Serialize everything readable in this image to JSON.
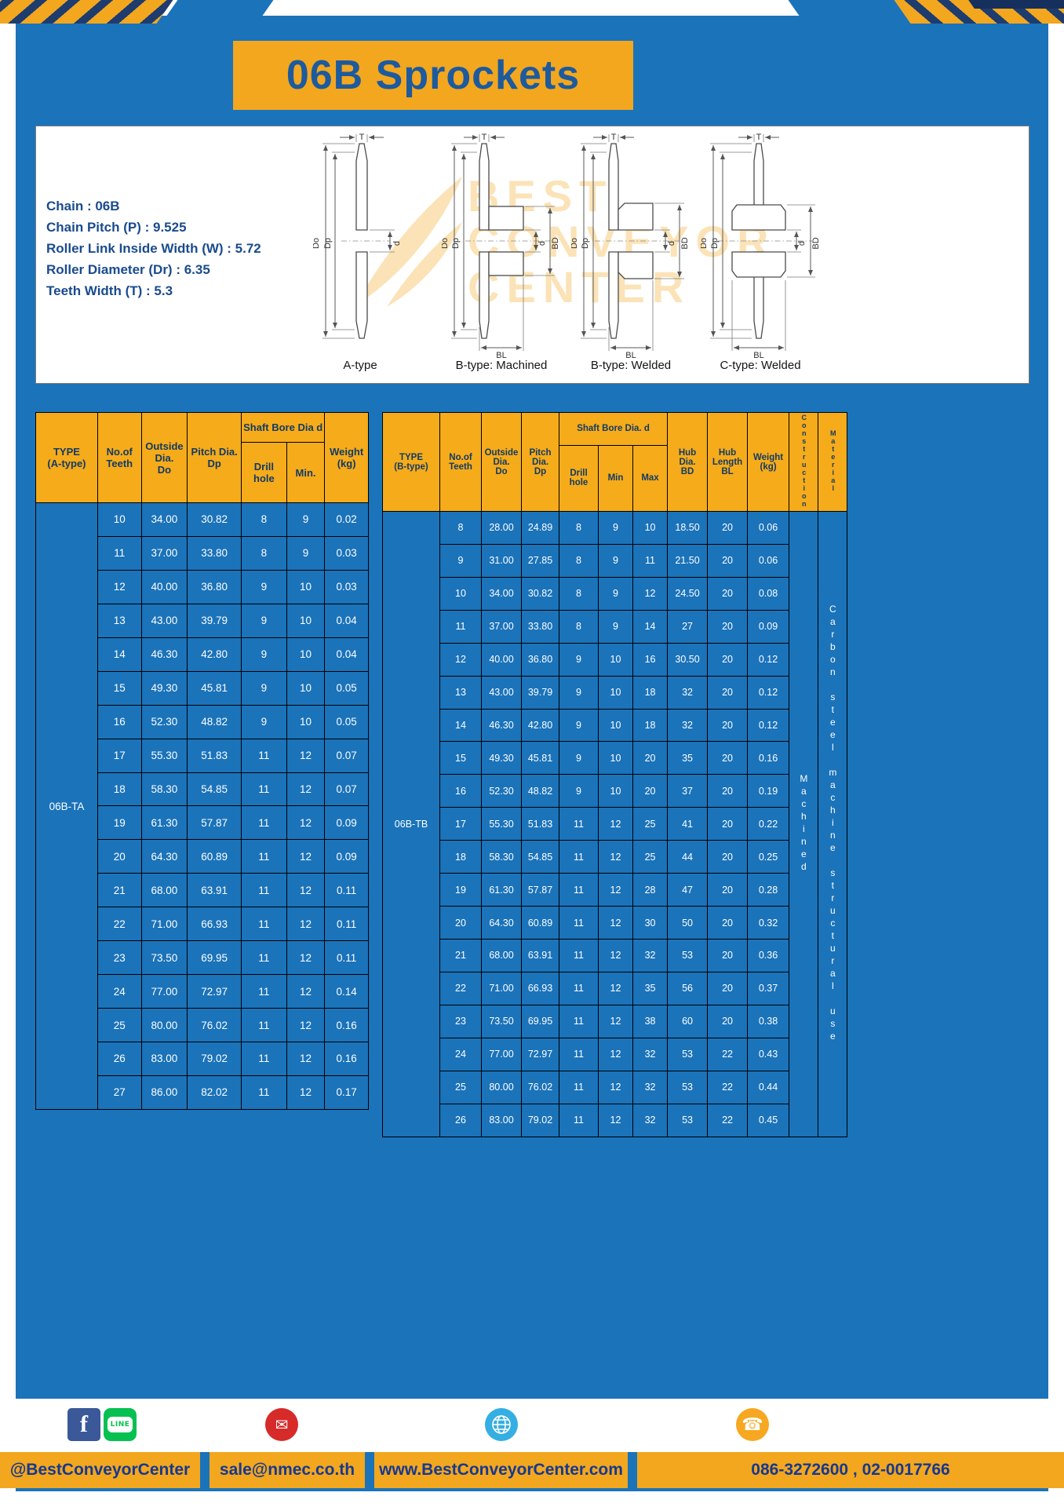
{
  "page": {
    "title": "06B Sprockets"
  },
  "colors": {
    "background_blue": "#1b73ba",
    "accent_yellow": "#f2a71f",
    "stripe_navy": "#1e3c6e",
    "header_text_navy": "#123a66"
  },
  "specs": {
    "lines": [
      "Chain : 06B",
      "Chain Pitch (P) : 9.525",
      "Roller Link Inside Width (W) : 5.72",
      "Roller Diameter (Dr) : 6.35",
      "Teeth Width (T) : 5.3"
    ]
  },
  "watermark": {
    "lines": [
      "BEST",
      "CONVEYOR",
      "CENTER"
    ]
  },
  "diagrams": {
    "captions": [
      "A-type",
      "B-type: Machined",
      "B-type: Welded",
      "C-type: Welded"
    ],
    "labels": {
      "do": "Do",
      "dp": "Dp",
      "d": "d",
      "t": "T",
      "bl": "BL",
      "bd": "BD"
    }
  },
  "table_a": {
    "header": {
      "type": "TYPE\n(A-type)",
      "teeth": "No.of\nTeeth",
      "outside": "Outside\nDia.\nDo",
      "pitch": "Pitch Dia.\nDp",
      "bore_group": "Shaft Bore Dia d",
      "drill": "Drill hole",
      "min": "Min.",
      "weight": "Weight\n(kg)"
    },
    "type_value": "06B-TA",
    "rows": [
      [
        "10",
        "34.00",
        "30.82",
        "8",
        "9",
        "0.02"
      ],
      [
        "11",
        "37.00",
        "33.80",
        "8",
        "9",
        "0.03"
      ],
      [
        "12",
        "40.00",
        "36.80",
        "9",
        "10",
        "0.03"
      ],
      [
        "13",
        "43.00",
        "39.79",
        "9",
        "10",
        "0.04"
      ],
      [
        "14",
        "46.30",
        "42.80",
        "9",
        "10",
        "0.04"
      ],
      [
        "15",
        "49.30",
        "45.81",
        "9",
        "10",
        "0.05"
      ],
      [
        "16",
        "52.30",
        "48.82",
        "9",
        "10",
        "0.05"
      ],
      [
        "17",
        "55.30",
        "51.83",
        "11",
        "12",
        "0.07"
      ],
      [
        "18",
        "58.30",
        "54.85",
        "11",
        "12",
        "0.07"
      ],
      [
        "19",
        "61.30",
        "57.87",
        "11",
        "12",
        "0.09"
      ],
      [
        "20",
        "64.30",
        "60.89",
        "11",
        "12",
        "0.09"
      ],
      [
        "21",
        "68.00",
        "63.91",
        "11",
        "12",
        "0.11"
      ],
      [
        "22",
        "71.00",
        "66.93",
        "11",
        "12",
        "0.11"
      ],
      [
        "23",
        "73.50",
        "69.95",
        "11",
        "12",
        "0.11"
      ],
      [
        "24",
        "77.00",
        "72.97",
        "11",
        "12",
        "0.14"
      ],
      [
        "25",
        "80.00",
        "76.02",
        "11",
        "12",
        "0.16"
      ],
      [
        "26",
        "83.00",
        "79.02",
        "11",
        "12",
        "0.16"
      ],
      [
        "27",
        "86.00",
        "82.02",
        "11",
        "12",
        "0.17"
      ]
    ]
  },
  "table_b": {
    "header": {
      "type": "TYPE\n(B-type)",
      "teeth": "No.of\nTeeth",
      "outside": "Outside\nDia.\nDo",
      "pitch": "Pitch\nDia.\nDp",
      "bore_group": "Shaft Bore Dia.  d",
      "drill": "Drill hole",
      "min": "Min",
      "max": "Max",
      "hub_dia": "Hub\nDia.\nBD",
      "hub_len": "Hub\nLength\nBL",
      "weight": "Weight\n(kg)",
      "construction": "Construction",
      "material": "Material"
    },
    "type_value": "06B-TB",
    "construction_value": "Machined",
    "material_value": "Carbon steel machine structural use",
    "rows": [
      [
        "8",
        "28.00",
        "24.89",
        "8",
        "9",
        "10",
        "18.50",
        "20",
        "0.06"
      ],
      [
        "9",
        "31.00",
        "27.85",
        "8",
        "9",
        "11",
        "21.50",
        "20",
        "0.06"
      ],
      [
        "10",
        "34.00",
        "30.82",
        "8",
        "9",
        "12",
        "24.50",
        "20",
        "0.08"
      ],
      [
        "11",
        "37.00",
        "33.80",
        "8",
        "9",
        "14",
        "27",
        "20",
        "0.09"
      ],
      [
        "12",
        "40.00",
        "36.80",
        "9",
        "10",
        "16",
        "30.50",
        "20",
        "0.12"
      ],
      [
        "13",
        "43.00",
        "39.79",
        "9",
        "10",
        "18",
        "32",
        "20",
        "0.12"
      ],
      [
        "14",
        "46.30",
        "42.80",
        "9",
        "10",
        "18",
        "32",
        "20",
        "0.12"
      ],
      [
        "15",
        "49.30",
        "45.81",
        "9",
        "10",
        "20",
        "35",
        "20",
        "0.16"
      ],
      [
        "16",
        "52.30",
        "48.82",
        "9",
        "10",
        "20",
        "37",
        "20",
        "0.19"
      ],
      [
        "17",
        "55.30",
        "51.83",
        "11",
        "12",
        "25",
        "41",
        "20",
        "0.22"
      ],
      [
        "18",
        "58.30",
        "54.85",
        "11",
        "12",
        "25",
        "44",
        "20",
        "0.25"
      ],
      [
        "19",
        "61.30",
        "57.87",
        "11",
        "12",
        "28",
        "47",
        "20",
        "0.28"
      ],
      [
        "20",
        "64.30",
        "60.89",
        "11",
        "12",
        "30",
        "50",
        "20",
        "0.32"
      ],
      [
        "21",
        "68.00",
        "63.91",
        "11",
        "12",
        "32",
        "53",
        "20",
        "0.36"
      ],
      [
        "22",
        "71.00",
        "66.93",
        "11",
        "12",
        "35",
        "56",
        "20",
        "0.37"
      ],
      [
        "23",
        "73.50",
        "69.95",
        "11",
        "12",
        "38",
        "60",
        "20",
        "0.38"
      ],
      [
        "24",
        "77.00",
        "72.97",
        "11",
        "12",
        "32",
        "53",
        "22",
        "0.43"
      ],
      [
        "25",
        "80.00",
        "76.02",
        "11",
        "12",
        "32",
        "53",
        "22",
        "0.44"
      ],
      [
        "26",
        "83.00",
        "79.02",
        "11",
        "12",
        "32",
        "53",
        "22",
        "0.45"
      ]
    ]
  },
  "footer": {
    "facebook_letter": "f",
    "line_label": "LINE",
    "mail_glyph": "✉",
    "phone_glyph": "☎",
    "sections": [
      {
        "text": "@BestConveyorCenter"
      },
      {
        "text": "sale@nmec.co.th"
      },
      {
        "text": "www.BestConveyorCenter.com"
      },
      {
        "text": "086-3272600 , 02-0017766"
      }
    ]
  }
}
